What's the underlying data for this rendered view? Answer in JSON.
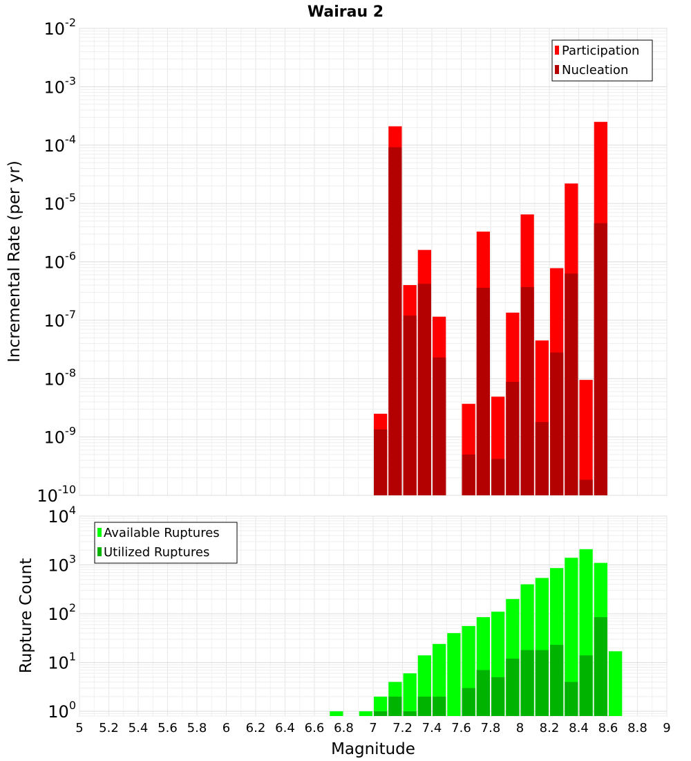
{
  "chart_data": [
    {
      "type": "bar",
      "title": "Wairau 2",
      "xlabel": "",
      "ylabel": "Incremental Rate (per yr)",
      "yscale": "log",
      "ylim": [
        1e-10,
        0.01
      ],
      "xlim": [
        5,
        9
      ],
      "bin_width": 0.1,
      "grid": true,
      "legend_position": "top-right",
      "y_tick_labels": [
        "10^-10",
        "10^-9",
        "10^-8",
        "10^-7",
        "10^-6",
        "10^-5",
        "10^-4",
        "10^-3",
        "10^-2"
      ],
      "y_tick_base": "10",
      "y_tick_exponents": [
        "-10",
        "-9",
        "-8",
        "-7",
        "-6",
        "-5",
        "-4",
        "-3",
        "-2"
      ],
      "series": [
        {
          "name": "Participation",
          "color": "#ff0000",
          "x": [
            7.05,
            7.15,
            7.25,
            7.35,
            7.45,
            7.65,
            7.75,
            7.85,
            7.95,
            8.05,
            8.15,
            8.25,
            8.35,
            8.45,
            8.55
          ],
          "values": [
            2.5e-09,
            0.00021,
            4e-07,
            1.6e-06,
            1.15e-07,
            3.7e-09,
            3.3e-06,
            4.9e-09,
            1.35e-07,
            6.5e-06,
            4.5e-08,
            7.8e-07,
            2.2e-05,
            9.5e-09,
            0.00025
          ]
        },
        {
          "name": "Nucleation",
          "color": "#b30000",
          "x": [
            7.05,
            7.15,
            7.25,
            7.35,
            7.45,
            7.65,
            7.75,
            7.85,
            7.95,
            8.05,
            8.15,
            8.25,
            8.35,
            8.45,
            8.55
          ],
          "values": [
            1.35e-09,
            9.2e-05,
            1.2e-07,
            4.2e-07,
            2.3e-08,
            5e-10,
            3.6e-07,
            4.2e-10,
            8.8e-09,
            3.7e-07,
            1.8e-09,
            2.8e-08,
            6.3e-07,
            1.85e-10,
            4.6e-06
          ]
        }
      ]
    },
    {
      "type": "bar",
      "title": "",
      "xlabel": "Magnitude",
      "ylabel": "Rupture Count",
      "yscale": "log",
      "ylim": [
        0.8,
        10000
      ],
      "xlim": [
        5,
        9
      ],
      "bin_width": 0.1,
      "grid": true,
      "legend_position": "top-left",
      "x_tick_labels": [
        "5",
        "5.2",
        "5.4",
        "5.6",
        "5.8",
        "6",
        "6.2",
        "6.4",
        "6.6",
        "6.8",
        "7",
        "7.2",
        "7.4",
        "7.6",
        "7.8",
        "8",
        "8.2",
        "8.4",
        "8.6",
        "8.8",
        "9"
      ],
      "y_tick_labels": [
        "10^0",
        "10^1",
        "10^2",
        "10^3",
        "10^4"
      ],
      "y_tick_base": "10",
      "y_tick_exponents": [
        "0",
        "1",
        "2",
        "3",
        "4"
      ],
      "series": [
        {
          "name": "Available Ruptures",
          "color": "#00ff00",
          "x": [
            6.75,
            6.95,
            7.05,
            7.15,
            7.25,
            7.35,
            7.45,
            7.55,
            7.65,
            7.75,
            7.85,
            7.95,
            8.05,
            8.15,
            8.25,
            8.35,
            8.45,
            8.55,
            8.65
          ],
          "values": [
            1,
            1,
            2,
            4,
            6,
            14,
            24,
            40,
            56,
            85,
            110,
            200,
            400,
            540,
            860,
            1400,
            2100,
            1100,
            17
          ]
        },
        {
          "name": "Utilized Ruptures",
          "color": "#00b300",
          "x": [
            7.05,
            7.15,
            7.25,
            7.35,
            7.45,
            7.65,
            7.75,
            7.85,
            7.95,
            8.05,
            8.15,
            8.25,
            8.35,
            8.45,
            8.55
          ],
          "values": [
            1,
            2,
            1,
            2,
            2,
            3,
            7,
            5,
            12,
            18,
            18,
            23,
            4,
            14,
            85
          ]
        }
      ]
    }
  ]
}
